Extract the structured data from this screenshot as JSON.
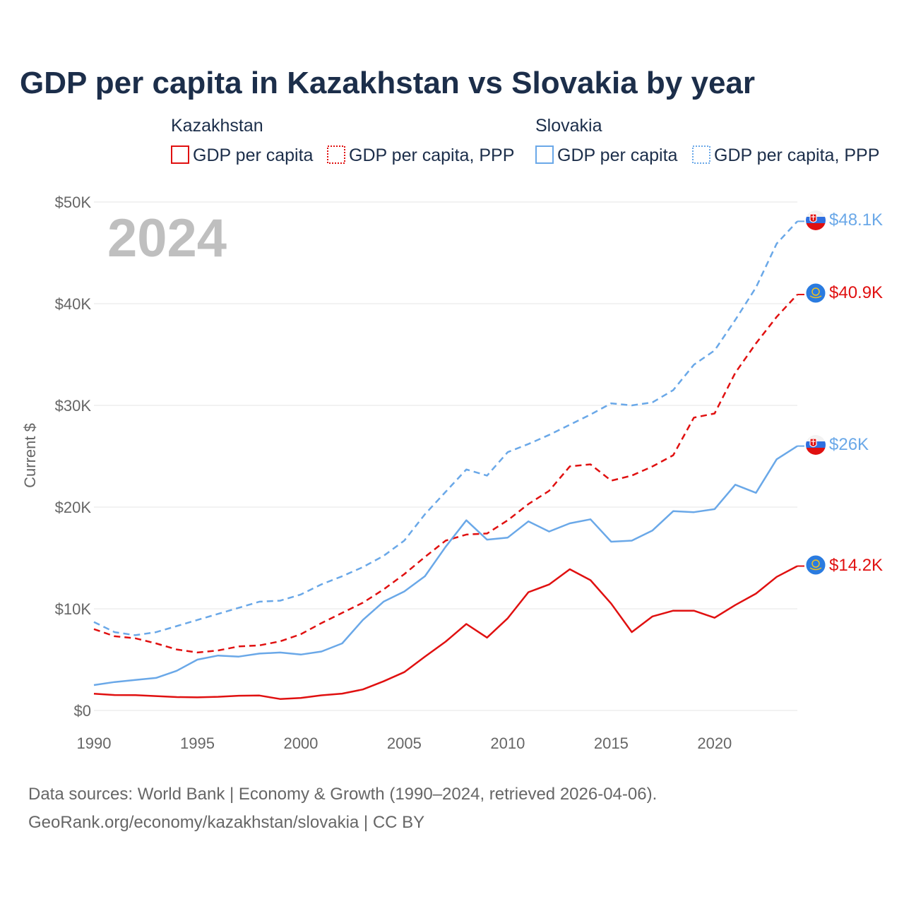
{
  "colors": {
    "kazakhstan": "#e01010",
    "slovakia": "#6aa8e8",
    "title": "#1c2e4a",
    "axis_text": "#666666",
    "year": "#bfbfbf"
  },
  "legend": {
    "group_kazakhstan": "Kazakhstan",
    "group_slovakia": "Slovakia",
    "gdp_label": "GDP per capita",
    "ppp_label": "GDP per capita, PPP"
  },
  "current_year": "2024",
  "end_labels": {
    "slovakia_ppp": "$48.1K",
    "kazakhstan_ppp": "$40.9K",
    "slovakia_gdp": "$26K",
    "kazakhstan_gdp": "$14.2K"
  },
  "footer": {
    "sources": "Data sources: World Bank | Economy & Growth (1990–2024, retrieved 2026-04-06).",
    "credit": "GeoRank.org/economy/kazakhstan/slovakia | CC BY"
  },
  "chart_data": {
    "type": "line",
    "title": "GDP per capita in Kazakhstan vs Slovakia by year",
    "xlabel": "",
    "ylabel": "Current $",
    "xlim": [
      1990,
      2024
    ],
    "ylim": [
      0,
      50000
    ],
    "x_ticks": [
      1990,
      1995,
      2000,
      2005,
      2010,
      2015,
      2020
    ],
    "x_tick_labels": [
      "1990",
      "1995",
      "2000",
      "2005",
      "2010",
      "2015",
      "2020"
    ],
    "y_ticks": [
      0,
      10000,
      20000,
      30000,
      40000,
      50000
    ],
    "y_tick_labels": [
      "$0",
      "$10K",
      "$20K",
      "$30K",
      "$40K",
      "$50K"
    ],
    "x": [
      1990,
      1991,
      1992,
      1993,
      1994,
      1995,
      1996,
      1997,
      1998,
      1999,
      2000,
      2001,
      2002,
      2003,
      2004,
      2005,
      2006,
      2007,
      2008,
      2009,
      2010,
      2011,
      2012,
      2013,
      2014,
      2015,
      2016,
      2017,
      2018,
      2019,
      2020,
      2021,
      2022,
      2023,
      2024
    ],
    "series": [
      {
        "key": "kazakhstan_gdp",
        "name": "Kazakhstan GDP per capita",
        "country": "Kazakhstan",
        "style": "solid",
        "values": [
          1650,
          1520,
          1510,
          1420,
          1320,
          1290,
          1350,
          1450,
          1470,
          1130,
          1230,
          1490,
          1660,
          2070,
          2870,
          3770,
          5290,
          6770,
          8510,
          7170,
          9070,
          11630,
          12390,
          13890,
          12810,
          10510,
          7710,
          9250,
          9810,
          9810,
          9120,
          10370,
          11490,
          13140,
          14200
        ]
      },
      {
        "key": "kazakhstan_ppp",
        "name": "Kazakhstan GDP per capita, PPP",
        "country": "Kazakhstan",
        "style": "dashed",
        "values": [
          8000,
          7300,
          7100,
          6600,
          6000,
          5700,
          5900,
          6300,
          6400,
          6800,
          7500,
          8600,
          9600,
          10600,
          11900,
          13400,
          15100,
          16700,
          17300,
          17400,
          18700,
          20300,
          21600,
          24000,
          24200,
          22600,
          23100,
          24000,
          25100,
          28800,
          29200,
          33200,
          36100,
          38700,
          40900
        ]
      },
      {
        "key": "slovakia_gdp",
        "name": "Slovakia GDP per capita",
        "country": "Slovakia",
        "style": "solid",
        "values": [
          2500,
          2800,
          3000,
          3200,
          3900,
          5000,
          5400,
          5300,
          5600,
          5700,
          5500,
          5800,
          6600,
          8900,
          10700,
          11700,
          13200,
          16100,
          18700,
          16800,
          17000,
          18600,
          17600,
          18400,
          18800,
          16600,
          16700,
          17700,
          19600,
          19500,
          19800,
          22200,
          21400,
          24700,
          26000
        ]
      },
      {
        "key": "slovakia_ppp",
        "name": "Slovakia GDP per capita, PPP",
        "country": "Slovakia",
        "style": "dashed",
        "values": [
          8700,
          7700,
          7400,
          7700,
          8300,
          8900,
          9500,
          10100,
          10700,
          10800,
          11400,
          12400,
          13200,
          14100,
          15200,
          16700,
          19300,
          21500,
          23700,
          23100,
          25400,
          26200,
          27100,
          28100,
          29100,
          30200,
          30000,
          30300,
          31500,
          34000,
          35400,
          38400,
          41600,
          45900,
          48100
        ]
      }
    ]
  }
}
